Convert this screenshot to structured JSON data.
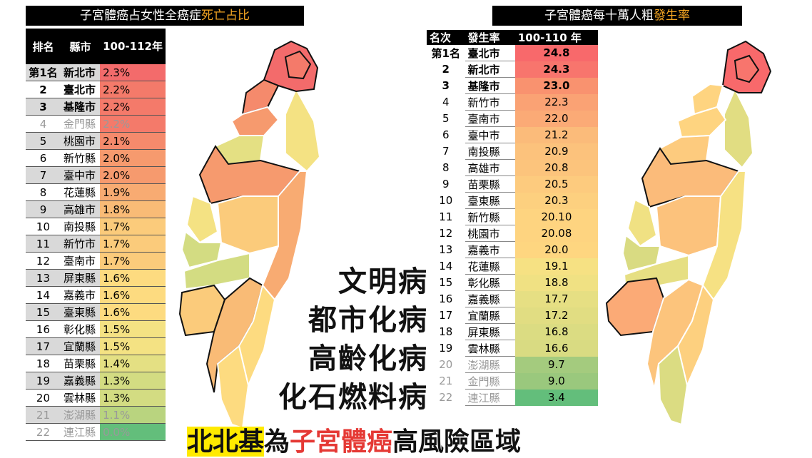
{
  "left_title": {
    "main": "子宮體癌占女性全癌症",
    "highlight": "死亡占比"
  },
  "left_headers": {
    "rank": "排名",
    "county": "縣市",
    "period": "100-112年"
  },
  "left_rows": [
    {
      "rank": "第1名",
      "county": "新北市",
      "value": "2.3%",
      "color": "#f36b6b"
    },
    {
      "rank": "2",
      "county": "臺北市",
      "value": "2.2%",
      "color": "#f47a6a"
    },
    {
      "rank": "3",
      "county": "基隆市",
      "value": "2.2%",
      "color": "#f47a6a"
    },
    {
      "rank": "4",
      "county": "金門縣",
      "value": "2.2%",
      "color": "#f47a6a"
    },
    {
      "rank": "5",
      "county": "桃園市",
      "value": "2.1%",
      "color": "#f58a6c"
    },
    {
      "rank": "6",
      "county": "新竹縣",
      "value": "2.0%",
      "color": "#f69a6e"
    },
    {
      "rank": "7",
      "county": "臺中市",
      "value": "2.0%",
      "color": "#f69a6e"
    },
    {
      "rank": "8",
      "county": "花蓮縣",
      "value": "1.9%",
      "color": "#f8ab72"
    },
    {
      "rank": "9",
      "county": "高雄市",
      "value": "1.8%",
      "color": "#f9bb76"
    },
    {
      "rank": "10",
      "county": "南投縣",
      "value": "1.7%",
      "color": "#fbcb7b"
    },
    {
      "rank": "11",
      "county": "新竹市",
      "value": "1.7%",
      "color": "#fbcb7b"
    },
    {
      "rank": "12",
      "county": "臺南市",
      "value": "1.7%",
      "color": "#fbcb7b"
    },
    {
      "rank": "13",
      "county": "屏東縣",
      "value": "1.6%",
      "color": "#fddb80"
    },
    {
      "rank": "14",
      "county": "嘉義市",
      "value": "1.6%",
      "color": "#fddb80"
    },
    {
      "rank": "15",
      "county": "臺東縣",
      "value": "1.6%",
      "color": "#fddb80"
    },
    {
      "rank": "16",
      "county": "彰化縣",
      "value": "1.5%",
      "color": "#f4e283"
    },
    {
      "rank": "17",
      "county": "宜蘭縣",
      "value": "1.5%",
      "color": "#f4e283"
    },
    {
      "rank": "18",
      "county": "苗栗縣",
      "value": "1.4%",
      "color": "#e4e083"
    },
    {
      "rank": "19",
      "county": "嘉義縣",
      "value": "1.3%",
      "color": "#d3dc82"
    },
    {
      "rank": "20",
      "county": "雲林縣",
      "value": "1.3%",
      "color": "#d3dc82"
    },
    {
      "rank": "21",
      "county": "澎湖縣",
      "value": "1.1%",
      "color": "#b9d47f"
    },
    {
      "rank": "22",
      "county": "連江縣",
      "value": "0.0%",
      "color": "#63be7b"
    }
  ],
  "right_title": {
    "main": "子宮體癌每十萬人粗",
    "highlight": "發生率"
  },
  "right_headers": {
    "rank": "名次",
    "county": "發生率",
    "period": "100-110 年"
  },
  "right_rows": [
    {
      "rank": "第1名",
      "county": "臺北市",
      "value": "24.8",
      "color": "#f8696b"
    },
    {
      "rank": "2",
      "county": "新北市",
      "value": "24.3",
      "color": "#f8756d"
    },
    {
      "rank": "3",
      "county": "基隆市",
      "value": "23.0",
      "color": "#f9926f"
    },
    {
      "rank": "4",
      "county": "新竹市",
      "value": "22.3",
      "color": "#faa274"
    },
    {
      "rank": "5",
      "county": "臺南市",
      "value": "22.0",
      "color": "#fbaa76"
    },
    {
      "rank": "6",
      "county": "臺中市",
      "value": "21.2",
      "color": "#fbbb7a"
    },
    {
      "rank": "7",
      "county": "南投縣",
      "value": "20.9",
      "color": "#fcc27c"
    },
    {
      "rank": "8",
      "county": "高雄市",
      "value": "20.8",
      "color": "#fcc47c"
    },
    {
      "rank": "9",
      "county": "苗栗縣",
      "value": "20.5",
      "color": "#fdcb7e"
    },
    {
      "rank": "10",
      "county": "臺東縣",
      "value": "20.3",
      "color": "#fdd07f"
    },
    {
      "rank": "11",
      "county": "新竹縣",
      "value": "20.10",
      "color": "#fed480"
    },
    {
      "rank": "12",
      "county": "桃園市",
      "value": "20.08",
      "color": "#fed480"
    },
    {
      "rank": "13",
      "county": "嘉義市",
      "value": "20.0",
      "color": "#fed680"
    },
    {
      "rank": "14",
      "county": "花蓮縣",
      "value": "19.1",
      "color": "#f6e183"
    },
    {
      "rank": "15",
      "county": "彰化縣",
      "value": "18.8",
      "color": "#f0e183"
    },
    {
      "rank": "16",
      "county": "嘉義縣",
      "value": "17.7",
      "color": "#e6df83"
    },
    {
      "rank": "17",
      "county": "宜蘭縣",
      "value": "17.2",
      "color": "#e1dd82"
    },
    {
      "rank": "18",
      "county": "屏東縣",
      "value": "16.8",
      "color": "#dbdc82"
    },
    {
      "rank": "19",
      "county": "雲林縣",
      "value": "16.6",
      "color": "#d9db82"
    },
    {
      "rank": "20",
      "county": "澎湖縣",
      "value": "9.7",
      "color": "#a4cb7e"
    },
    {
      "rank": "21",
      "county": "金門縣",
      "value": "9.0",
      "color": "#9ac87d"
    },
    {
      "rank": "22",
      "county": "連江縣",
      "value": "3.4",
      "color": "#63be7b"
    }
  ],
  "slogans": [
    "文明病",
    "都市化病",
    "高齡化病",
    "化石燃料病"
  ],
  "banner": {
    "part1": "北北基",
    "part2": "為",
    "part3": "子宮體癌",
    "part4": "高風險區域"
  }
}
